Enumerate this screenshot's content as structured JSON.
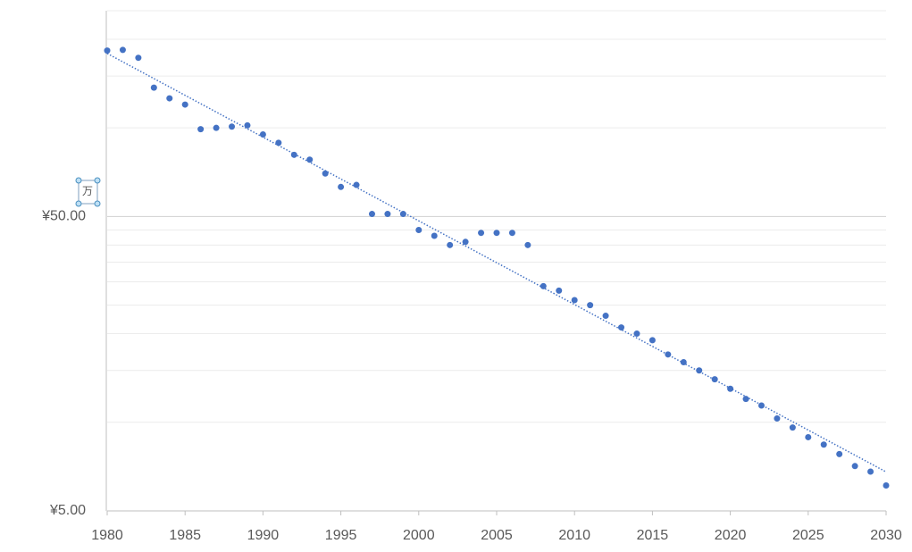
{
  "chart_data": {
    "type": "scatter",
    "display_unit": "万",
    "x": [
      1980,
      1981,
      1982,
      1983,
      1984,
      1985,
      1986,
      1987,
      1988,
      1989,
      1990,
      1991,
      1992,
      1993,
      1994,
      1995,
      1996,
      1997,
      1998,
      1999,
      2000,
      2001,
      2002,
      2003,
      2004,
      2005,
      2006,
      2007,
      2008,
      2009,
      2010,
      2011,
      2012,
      2013,
      2014,
      2015,
      2016,
      2017,
      2018,
      2019,
      2020,
      2021,
      2022,
      2023,
      2024,
      2025,
      2026,
      2027,
      2028,
      2029,
      2030
    ],
    "values": [
      183,
      184,
      173,
      137,
      126,
      120,
      99,
      100,
      101,
      102,
      95,
      89,
      81,
      78,
      70,
      63,
      64,
      51,
      51,
      51,
      45,
      43,
      40,
      41,
      44,
      44,
      44,
      40,
      29,
      28,
      26,
      25,
      23,
      21,
      20,
      19,
      17,
      16,
      15,
      14,
      13,
      12,
      11.4,
      10.3,
      9.6,
      8.9,
      8.4,
      7.8,
      7.1,
      6.8,
      6.1
    ],
    "color": "#4472c4",
    "trendline": "exponential",
    "log_scale_y": true,
    "xlim": [
      1980,
      2030
    ],
    "xticks": [
      1980,
      1985,
      1990,
      1995,
      2000,
      2005,
      2010,
      2015,
      2020,
      2025,
      2030
    ],
    "ylim": [
      5,
      250
    ],
    "yticks": [
      {
        "value": 5,
        "label": "¥5.00"
      },
      {
        "value": 50,
        "label": "¥50.00"
      }
    ],
    "minor_gridlines": [
      10,
      15,
      20,
      25,
      30,
      35,
      40,
      45,
      100,
      150,
      200,
      250
    ],
    "grid": true
  }
}
